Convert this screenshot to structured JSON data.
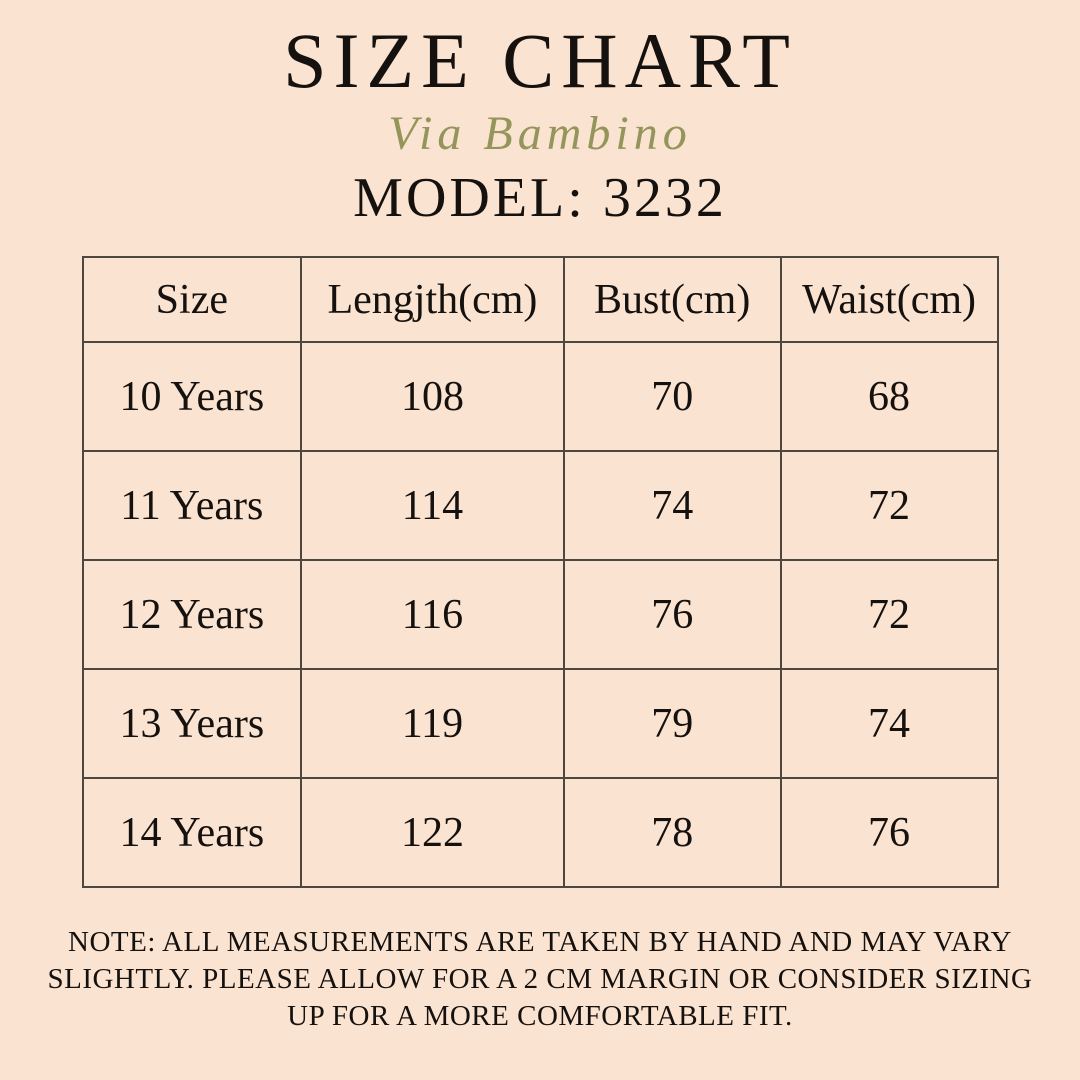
{
  "header": {
    "title": "SIZE CHART",
    "brand": "Via Bambino",
    "model": "MODEL: 3232"
  },
  "colors": {
    "background": "#fbe3d1",
    "text": "#15110e",
    "brand_script": "#94955a",
    "table_border": "#4d4740"
  },
  "chart_data": {
    "type": "table",
    "columns": [
      "Size",
      "Lengjth(cm)",
      "Bust(cm)",
      "Waist(cm)"
    ],
    "rows": [
      [
        "10 Years",
        "108",
        "70",
        "68"
      ],
      [
        "11 Years",
        "114",
        "74",
        "72"
      ],
      [
        "12 Years",
        "116",
        "76",
        "72"
      ],
      [
        "13 Years",
        "119",
        "79",
        "74"
      ],
      [
        "14 Years",
        "122",
        "78",
        "76"
      ]
    ]
  },
  "footer": {
    "note_lines": [
      "NOTE: ALL MEASUREMENTS ARE TAKEN BY HAND AND MAY VARY",
      "SLIGHTLY. PLEASE ALLOW FOR A 2 CM MARGIN OR CONSIDER SIZING",
      "UP FOR A MORE COMFORTABLE FIT."
    ]
  }
}
